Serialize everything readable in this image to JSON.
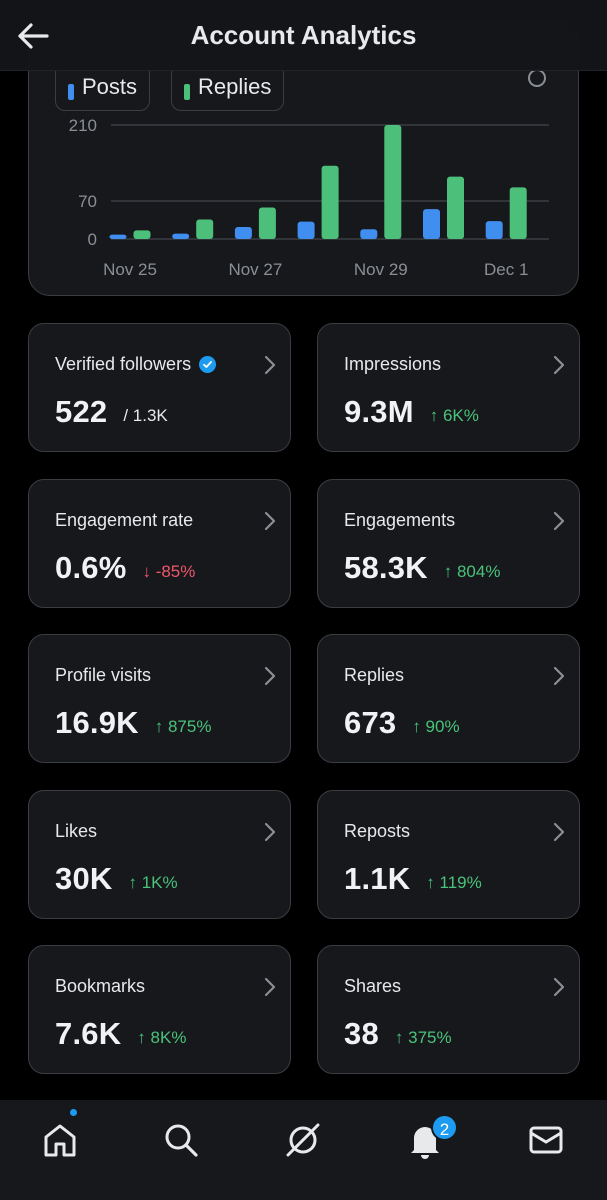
{
  "header": {
    "title": "Account Analytics"
  },
  "chart_data": {
    "type": "bar",
    "categories": [
      "Nov 25",
      "Nov 26",
      "Nov 27",
      "Nov 28",
      "Nov 29",
      "Nov 30",
      "Dec 1"
    ],
    "x_tick_labels": [
      "Nov 25",
      "Nov 27",
      "Nov 29",
      "Dec 1"
    ],
    "series": [
      {
        "name": "Posts",
        "color": "#3f8ef0",
        "values": [
          8,
          10,
          22,
          32,
          18,
          55,
          33
        ]
      },
      {
        "name": "Replies",
        "color": "#4cc07a",
        "values": [
          16,
          36,
          58,
          135,
          210,
          115,
          95
        ]
      }
    ],
    "ylim": [
      0,
      210
    ],
    "yticks": [
      "0",
      "70",
      "210"
    ],
    "grid": true,
    "legend": "top-left"
  },
  "metrics": [
    {
      "label": "Verified followers",
      "value": "522",
      "change": "/ 1.3K",
      "trend": "neutral",
      "verified_icon": true
    },
    {
      "label": "Impressions",
      "value": "9.3M",
      "change": "↑ 6K%",
      "trend": "up"
    },
    {
      "label": "Engagement rate",
      "value": "0.6%",
      "change": "↓ -85%",
      "trend": "down"
    },
    {
      "label": "Engagements",
      "value": "58.3K",
      "change": "↑ 804%",
      "trend": "up"
    },
    {
      "label": "Profile visits",
      "value": "16.9K",
      "change": "↑ 875%",
      "trend": "up"
    },
    {
      "label": "Replies",
      "value": "673",
      "change": "↑ 90%",
      "trend": "up"
    },
    {
      "label": "Likes",
      "value": "30K",
      "change": "↑ 1K%",
      "trend": "up"
    },
    {
      "label": "Reposts",
      "value": "1.1K",
      "change": "↑ 119%",
      "trend": "up"
    },
    {
      "label": "Bookmarks",
      "value": "7.6K",
      "change": "↑ 8K%",
      "trend": "up"
    },
    {
      "label": "Shares",
      "value": "38",
      "change": "↑ 375%",
      "trend": "up"
    }
  ],
  "nav": {
    "items": [
      "home-icon",
      "search-icon",
      "grok-icon",
      "notifications-icon",
      "messages-icon"
    ],
    "notification_count": "2"
  },
  "colors": {
    "accent": "#1d9bf0",
    "up": "#4bc27a",
    "down": "#f0566a"
  }
}
